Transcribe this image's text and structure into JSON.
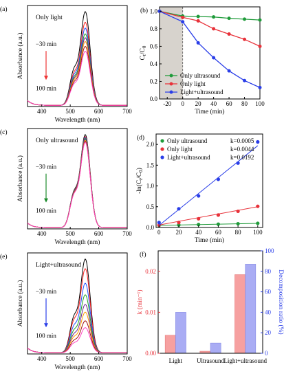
{
  "chart_data": [
    {
      "panel": "(a)",
      "type": "line",
      "annotation": "Only  light",
      "arrow_start_label": "−30 min",
      "arrow_end_label": "100 min",
      "arrow_color": "#ee3333",
      "xlabel": "Wavelength (nm)",
      "ylabel": "Absorbance (a.u.)",
      "xlim": [
        350,
        700
      ],
      "xticks": [
        400,
        500,
        600,
        700
      ],
      "peak_nm": 553,
      "series_peak_heights": [
        0.97,
        0.86,
        0.8,
        0.74,
        0.7,
        0.66,
        0.61,
        0.56
      ],
      "series_colors": [
        "#000000",
        "#ff2020",
        "#2050ff",
        "#20a020",
        "#702090",
        "#ffa000",
        "#a01010",
        "#ff40c0"
      ]
    },
    {
      "panel": "(b)",
      "type": "line",
      "xlabel": "Time (min)",
      "ylabel": "Ct/C0",
      "ylabel_main": "C",
      "ylabel_sub1": "t",
      "ylabel_sep": "/C",
      "ylabel_sub2": "0",
      "xlim": [
        -30,
        100
      ],
      "ylim": [
        0,
        1.05
      ],
      "xticks": [
        -20,
        0,
        20,
        40,
        60,
        80,
        100
      ],
      "yticks": [
        0.0,
        0.2,
        0.4,
        0.6,
        0.8,
        1.0
      ],
      "shaded_x_range": [
        -30,
        0
      ],
      "x": [
        -30,
        0,
        20,
        40,
        60,
        80,
        100
      ],
      "series": [
        {
          "name": "Only ultrasound",
          "color": "#1f9b3a",
          "values": [
            1.0,
            0.945,
            0.94,
            0.935,
            0.92,
            0.91,
            0.9
          ]
        },
        {
          "name": "Only light",
          "color": "#e8323a",
          "values": [
            1.0,
            0.93,
            0.89,
            0.8,
            0.74,
            0.68,
            0.6
          ]
        },
        {
          "name": "Light+ultrasound",
          "color": "#2a3ee8",
          "values": [
            1.0,
            0.88,
            0.64,
            0.47,
            0.32,
            0.21,
            0.13
          ]
        }
      ],
      "legend_position": "bottom-left"
    },
    {
      "panel": "(c)",
      "type": "line",
      "annotation": "Only ultrasound",
      "arrow_start_label": "−30 min",
      "arrow_end_label": "100 min",
      "arrow_color": "#1a8a2a",
      "xlabel": "Wavelength (nm)",
      "ylabel": "Absorbance (a.u.)",
      "xlim": [
        350,
        700
      ],
      "xticks": [
        400,
        500,
        600,
        700
      ],
      "peak_nm": 553,
      "series_peak_heights": [
        0.97,
        0.95,
        0.94,
        0.93,
        0.92,
        0.91,
        0.9,
        0.89
      ],
      "series_colors": [
        "#000000",
        "#ff2020",
        "#2050ff",
        "#20a020",
        "#702090",
        "#ffa000",
        "#a01010",
        "#ff40c0"
      ]
    },
    {
      "panel": "(d)",
      "type": "scatter",
      "xlabel": "Time (min)",
      "ylabel": "-ln(Ct/C0)",
      "ylabel_main": "-ln(C",
      "ylabel_sub1": "t",
      "ylabel_sep": "/C",
      "ylabel_sub2": "0",
      "ylabel_end": ")",
      "xlim": [
        -3,
        105
      ],
      "ylim": [
        0,
        2.25
      ],
      "xticks": [
        0,
        20,
        40,
        60,
        80,
        100
      ],
      "yticks": [
        0.0,
        0.5,
        1.0,
        1.5,
        2.0
      ],
      "x": [
        0,
        20,
        40,
        60,
        80,
        100
      ],
      "series": [
        {
          "name": "Only ultrasound",
          "k_label": "k=0.0005",
          "color": "#1f9b3a",
          "values": [
            0.05,
            0.06,
            0.07,
            0.08,
            0.09,
            0.1
          ]
        },
        {
          "name": "Only light",
          "k_label": "k=0.0044",
          "color": "#e8323a",
          "values": [
            0.06,
            0.12,
            0.21,
            0.3,
            0.39,
            0.51
          ]
        },
        {
          "name": "Light+ultrasound",
          "k_label": "k=0.0192",
          "color": "#2a3ee8",
          "values": [
            0.12,
            0.45,
            0.76,
            1.16,
            1.55,
            2.06
          ]
        }
      ],
      "fit_slopes": [
        0.0005,
        0.0044,
        0.0192
      ],
      "fit_intercepts": [
        0.05,
        0.06,
        0.05
      ],
      "legend_position": "top-left"
    },
    {
      "panel": "(e)",
      "type": "line",
      "annotation": "Light+ultrasound",
      "arrow_start_label": "−30 min",
      "arrow_end_label": "100 min",
      "arrow_color": "#2a3ee8",
      "xlabel": "Wavelength (nm)",
      "ylabel": "Absorbance (a.u.)",
      "xlim": [
        350,
        700
      ],
      "xticks": [
        400,
        500,
        600,
        700
      ],
      "peak_nm": 553,
      "series_peak_heights": [
        0.97,
        0.87,
        0.72,
        0.6,
        0.5,
        0.42,
        0.33,
        0.26
      ],
      "series_colors": [
        "#000000",
        "#ff2020",
        "#2050ff",
        "#20a020",
        "#702090",
        "#ffa000",
        "#a01010",
        "#ff40c0"
      ]
    },
    {
      "panel": "(f)",
      "type": "bar",
      "categories": [
        "Light",
        "Ultrasound",
        "Light+ultrasound"
      ],
      "ylabel": "k (min⁻¹)",
      "ylabel_right": "Decomposition ratio (%)",
      "ylim": [
        0,
        0.025
      ],
      "yticks": [
        0.0,
        0.01,
        0.02
      ],
      "ylim_right": [
        0,
        100
      ],
      "yticks_right": [
        0,
        20,
        40,
        60,
        80,
        100
      ],
      "series": [
        {
          "axis": "left",
          "color": "#f6a0a0",
          "values": [
            0.0044,
            0.0005,
            0.0192
          ]
        },
        {
          "axis": "right",
          "color": "#a9acf4",
          "values": [
            40,
            10,
            87
          ]
        }
      ]
    }
  ]
}
